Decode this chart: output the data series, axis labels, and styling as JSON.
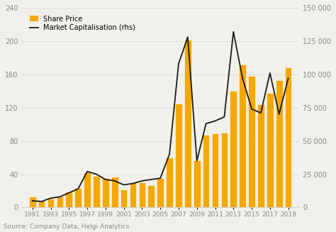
{
  "years": [
    1991,
    1992,
    1993,
    1994,
    1995,
    1996,
    1997,
    1998,
    1999,
    2000,
    2001,
    2002,
    2003,
    2004,
    2005,
    2006,
    2007,
    2008,
    2009,
    2010,
    2011,
    2012,
    2013,
    2014,
    2015,
    2016,
    2017,
    2018,
    2019
  ],
  "share_price": [
    13,
    8,
    11,
    13,
    19,
    23,
    42,
    38,
    35,
    37,
    22,
    30,
    30,
    27,
    35,
    60,
    125,
    202,
    57,
    87,
    89,
    90,
    140,
    172,
    158,
    124,
    138,
    153,
    168
  ],
  "market_cap": [
    5000,
    4500,
    7000,
    8000,
    11000,
    14000,
    27000,
    25000,
    21000,
    20000,
    17000,
    18000,
    20000,
    21000,
    22000,
    40000,
    108000,
    128000,
    35000,
    63000,
    65000,
    68000,
    132000,
    97000,
    74000,
    71000,
    101000,
    70000,
    97000
  ],
  "bar_color": "#F5A800",
  "bar_edge_color": "#FFFFFF",
  "line_color": "#1a1a1a",
  "bg_color": "#F2F0EB",
  "plot_bg_color": "#F2F0EB",
  "ylim_left": [
    0,
    240
  ],
  "ylim_right": [
    0,
    150000
  ],
  "yticks_left": [
    0,
    40,
    80,
    120,
    160,
    200,
    240
  ],
  "yticks_right": [
    0,
    25000,
    50000,
    75000,
    100000,
    125000,
    150000
  ],
  "ytick_right_labels": [
    "0",
    "25 000",
    "50 000",
    "75 000",
    "100 000",
    "125 000",
    "150 000"
  ],
  "xtick_years": [
    1991,
    1993,
    1995,
    1997,
    1999,
    2001,
    2003,
    2005,
    2007,
    2009,
    2011,
    2013,
    2015,
    2017,
    2019
  ],
  "xlim": [
    1989.8,
    2020.2
  ],
  "source_text": "Source: Company Data, Helgi Analytics",
  "legend_bar_label": "Share Price",
  "legend_line_label": "Market Capitalisation (rhs)",
  "grid_color": "#DDDBD5",
  "spine_color": "#CCCCCC",
  "tick_label_color": "#888888",
  "bar_width": 0.75
}
